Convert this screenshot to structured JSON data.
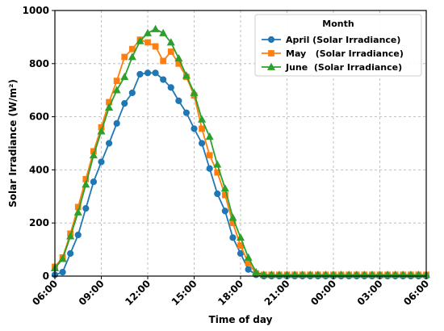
{
  "chart_data": {
    "type": "line",
    "xlabel": "Time of day",
    "ylabel": "Solar Irradiance (W/m²)",
    "ylim": [
      0,
      1000
    ],
    "y_ticks": [
      0,
      200,
      400,
      600,
      800,
      1000
    ],
    "x_ticks": [
      "06:00",
      "09:00",
      "12:00",
      "15:00",
      "18:00",
      "21:00",
      "00:00",
      "03:00",
      "06:00"
    ],
    "grid": true,
    "legend_title": "Month",
    "legend_position": "top-right",
    "x": [
      "06:00",
      "06:30",
      "07:00",
      "07:30",
      "08:00",
      "08:30",
      "09:00",
      "09:30",
      "10:00",
      "10:30",
      "11:00",
      "11:30",
      "12:00",
      "12:30",
      "13:00",
      "13:30",
      "14:00",
      "14:30",
      "15:00",
      "15:30",
      "16:00",
      "16:30",
      "17:00",
      "17:30",
      "18:00",
      "18:30",
      "19:00",
      "19:30",
      "20:00",
      "20:30",
      "21:00",
      "21:30",
      "22:00",
      "22:30",
      "23:00",
      "23:30",
      "00:00",
      "00:30",
      "01:00",
      "01:30",
      "02:00",
      "02:30",
      "03:00",
      "03:30",
      "04:00",
      "04:30",
      "05:00",
      "05:30",
      "06:00"
    ],
    "series": [
      {
        "name": "April (Solar Irradiance)",
        "color": "#1f77b4",
        "marker": "circle",
        "values": [
          5,
          15,
          85,
          155,
          255,
          355,
          430,
          500,
          575,
          650,
          690,
          760,
          765,
          765,
          740,
          710,
          660,
          615,
          555,
          500,
          405,
          310,
          245,
          145,
          85,
          25,
          5,
          0,
          0,
          0,
          0,
          0,
          0,
          0,
          0,
          0,
          0,
          0,
          0,
          0,
          0,
          0,
          0,
          0,
          0,
          0,
          0,
          0,
          0
        ]
      },
      {
        "name": "May   (Solar Irradiance)",
        "color": "#ff7f0e",
        "marker": "square",
        "values": [
          35,
          70,
          160,
          260,
          365,
          470,
          560,
          655,
          735,
          825,
          855,
          890,
          880,
          865,
          810,
          845,
          800,
          750,
          680,
          555,
          455,
          390,
          305,
          200,
          115,
          50,
          10,
          5,
          5,
          5,
          5,
          5,
          5,
          5,
          5,
          5,
          5,
          5,
          5,
          5,
          5,
          5,
          5,
          5,
          5,
          5,
          5,
          5,
          5
        ]
      },
      {
        "name": "June  (Solar Irradiance)",
        "color": "#2ca02c",
        "marker": "triangle",
        "values": [
          30,
          65,
          150,
          240,
          345,
          455,
          545,
          635,
          700,
          750,
          825,
          885,
          915,
          930,
          915,
          880,
          820,
          755,
          690,
          590,
          525,
          420,
          330,
          220,
          145,
          70,
          15,
          5,
          5,
          5,
          5,
          5,
          5,
          5,
          5,
          5,
          5,
          5,
          5,
          5,
          5,
          5,
          5,
          5,
          5,
          5,
          5,
          5,
          5
        ]
      }
    ]
  }
}
